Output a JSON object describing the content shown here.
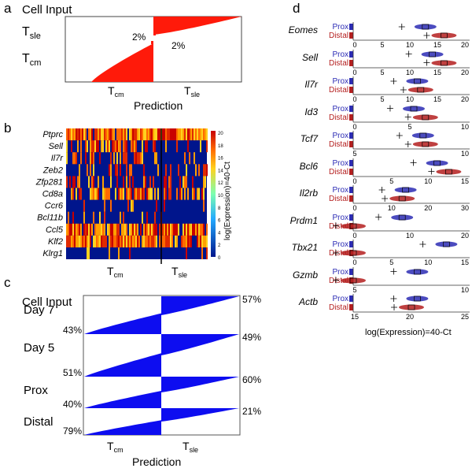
{
  "panel_a": {
    "label": "a",
    "cell_input": "Cell Input",
    "row_sle": "T",
    "row_sle_sub": "sle",
    "row_cm": "T",
    "row_cm_sub": "cm",
    "pct_left": "2%",
    "pct_right": "2%",
    "x_tcm": "T",
    "x_tcm_sub": "cm",
    "x_tsle": "T",
    "x_tsle_sub": "sle",
    "xlabel": "Prediction",
    "colors": {
      "fill": "#ff1a0a"
    }
  },
  "panel_b": {
    "label": "b",
    "genes": [
      "Ptprc",
      "Sell",
      "Il7r",
      "Zeb2",
      "Zfp281",
      "Cd8a",
      "Ccr6",
      "Bcl11b",
      "Ccl5",
      "Klf2",
      "Klrg1"
    ],
    "x_tcm": "T",
    "x_tcm_sub": "cm",
    "x_tsle": "T",
    "x_tsle_sub": "sle",
    "colorbar_ticks": [
      "20",
      "18",
      "16",
      "14",
      "12",
      "10",
      "8",
      "6",
      "4",
      "2",
      "0"
    ],
    "colorbar_label": "log(Expression)=40-Ct",
    "colors": {
      "bg": "#00158c",
      "low": "#00158c",
      "mid": "#ffd21e",
      "high": "#c80000"
    }
  },
  "panel_c": {
    "label": "c",
    "cell_input": "Cell Input",
    "groups": [
      {
        "name": "Day 7",
        "left_pct": "43%",
        "right_pct": "57%"
      },
      {
        "name": "Day 5",
        "left_pct": "51%",
        "right_pct": "49%"
      },
      {
        "name": "Prox",
        "left_pct": "40%",
        "right_pct": "60%"
      },
      {
        "name": "Distal",
        "left_pct": "79%",
        "right_pct": "21%"
      }
    ],
    "x_tcm": "T",
    "x_tcm_sub": "cm",
    "x_tsle": "T",
    "x_tsle_sub": "sle",
    "xlabel": "Prediction",
    "colors": {
      "fill": "#0d0df0"
    }
  },
  "panel_d": {
    "label": "d",
    "legend_prox": "Prox",
    "legend_distal": "Distal",
    "genes": [
      {
        "name": "Eomes",
        "ticks": [
          "0",
          "5",
          "10",
          "15",
          "20"
        ]
      },
      {
        "name": "Sell",
        "ticks": [
          "0",
          "5",
          "10",
          "15",
          "20"
        ]
      },
      {
        "name": "Il7r",
        "ticks": [
          "0",
          "5",
          "10",
          "15",
          "20"
        ]
      },
      {
        "name": "Id3",
        "ticks": [
          "0",
          "5",
          "10"
        ]
      },
      {
        "name": "Tcf7",
        "ticks": [
          "5",
          "10"
        ]
      },
      {
        "name": "Bcl6",
        "ticks": [
          "0",
          "5",
          "10",
          "15"
        ]
      },
      {
        "name": "Il2rb",
        "ticks": [
          "0",
          "10",
          "20",
          "30"
        ]
      },
      {
        "name": "Prdm1",
        "ticks": [
          "0",
          "10",
          "20"
        ]
      },
      {
        "name": "Tbx21",
        "ticks": [
          "0",
          "5",
          "10",
          "15"
        ]
      },
      {
        "name": "Gzmb",
        "ticks": [
          "5",
          "10"
        ]
      },
      {
        "name": "Actb",
        "ticks": [
          "15",
          "20",
          "25"
        ]
      }
    ],
    "xlabel": "log(Expression)=40-Ct",
    "colors": {
      "prox": "#2b2bb4",
      "distal": "#b41e1e"
    }
  }
}
